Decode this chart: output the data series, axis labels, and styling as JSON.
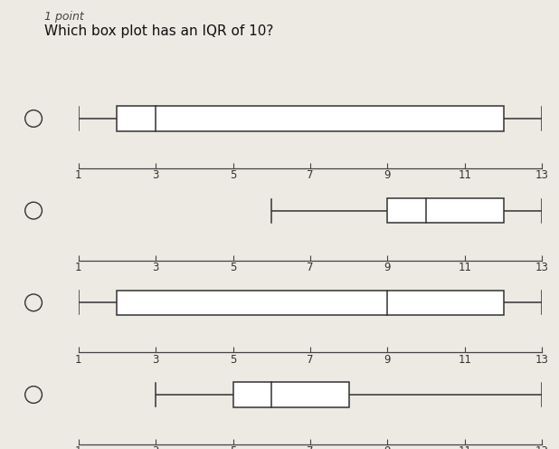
{
  "title": "Which box plot has an IQR of 10?",
  "question_header": "1 point",
  "background_color": "#ede9e3",
  "box_plots": [
    {
      "min": 1,
      "q1": 2,
      "median": 3,
      "q3": 12,
      "max": 13
    },
    {
      "min": 6,
      "q1": 9,
      "median": 10,
      "q3": 12,
      "max": 13
    },
    {
      "min": 1,
      "q1": 2,
      "median": 9,
      "q3": 12,
      "max": 13
    },
    {
      "min": 3,
      "q1": 5,
      "median": 6,
      "q3": 8,
      "max": 13
    }
  ],
  "xmin": 1,
  "xmax": 13,
  "xticks": [
    1,
    3,
    5,
    7,
    9,
    11,
    13
  ],
  "axis_color": "#444444",
  "box_color": "#ffffff",
  "box_edge_color": "#333333",
  "whisker_color": "#333333",
  "radio_color": "#333333",
  "tick_fontsize": 8.5,
  "title_fontsize": 11,
  "header_fontsize": 9
}
